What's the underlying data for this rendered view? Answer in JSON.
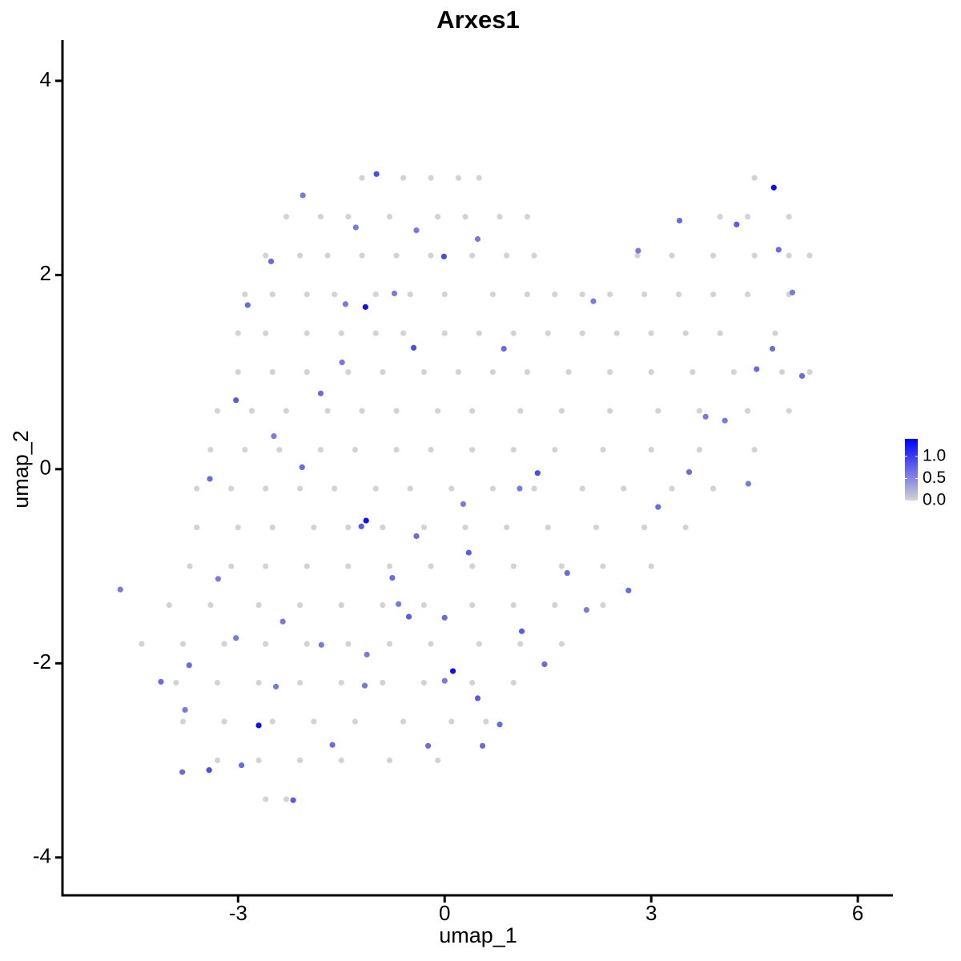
{
  "chart_data": {
    "type": "scatter",
    "title": "Arxes1",
    "xlabel": "umap_1",
    "ylabel": "umap_2",
    "xlim": [
      -5.55,
      6.51
    ],
    "ylim": [
      -4.39,
      4.42
    ],
    "xticks": [
      -3,
      0,
      3,
      6
    ],
    "yticks": [
      -4,
      -2,
      0,
      2,
      4
    ],
    "color_low": "#d3d3d3",
    "color_high": "#0000ff",
    "colorlim": [
      0,
      1.4
    ],
    "colorticks": [
      {
        "value": 0,
        "label": "0.0"
      },
      {
        "value": 0.5,
        "label": "0.5"
      },
      {
        "value": 1,
        "label": "1.0"
      }
    ],
    "x": [
      -1.2,
      -0.6,
      -0.2,
      0.2,
      0.5,
      4.5,
      -2.3,
      -1.8,
      -1.4,
      -0.8,
      -0.1,
      0.3,
      0.8,
      1.2,
      4.0,
      4.4,
      5.0,
      -2.6,
      -2.1,
      -1.7,
      -1.2,
      -0.7,
      -0.2,
      0.4,
      0.9,
      1.3,
      2.8,
      3.3,
      3.9,
      4.5,
      5.0,
      5.3,
      -2.9,
      -2.5,
      -2.0,
      -1.6,
      -1.0,
      -0.5,
      0.0,
      0.7,
      1.2,
      1.6,
      2.0,
      2.4,
      2.9,
      3.4,
      3.9,
      4.4,
      5.0,
      -3.0,
      -2.6,
      -2.0,
      -1.5,
      -1.0,
      -0.6,
      0.0,
      0.5,
      1.0,
      1.5,
      2.0,
      2.5,
      3.0,
      3.5,
      4.0,
      4.8,
      -3.0,
      -2.5,
      -2.0,
      -1.4,
      -0.9,
      -0.3,
      0.2,
      0.7,
      1.2,
      1.8,
      2.4,
      3.0,
      3.6,
      4.2,
      4.9,
      5.3,
      -3.3,
      -2.8,
      -2.3,
      -1.7,
      -1.2,
      -0.7,
      -0.1,
      0.4,
      1.1,
      1.7,
      2.4,
      3.1,
      3.7,
      4.4,
      5.0,
      -3.4,
      -2.9,
      -2.4,
      -1.8,
      -1.3,
      -0.7,
      -0.2,
      0.4,
      1.0,
      1.6,
      2.3,
      3.0,
      3.7,
      4.5,
      -3.6,
      -3.1,
      -2.6,
      -2.1,
      -1.6,
      -1.0,
      -0.5,
      0.1,
      0.7,
      1.3,
      2.0,
      2.6,
      3.3,
      3.9,
      -3.6,
      -3.0,
      -2.5,
      -1.9,
      -1.4,
      -0.9,
      -0.3,
      0.3,
      0.9,
      1.5,
      2.2,
      2.9,
      3.5,
      -3.7,
      -3.1,
      -2.6,
      -2.0,
      -1.4,
      -0.8,
      -0.2,
      0.4,
      1.0,
      1.7,
      2.3,
      3.0,
      -4.0,
      -3.4,
      -2.7,
      -2.1,
      -1.5,
      -0.9,
      -0.3,
      0.4,
      1.0,
      1.6,
      2.3,
      -4.4,
      -3.8,
      -3.2,
      -2.6,
      -2.0,
      -1.4,
      -0.8,
      -0.2,
      0.5,
      1.1,
      1.7,
      -3.9,
      -3.3,
      -2.7,
      -2.1,
      -1.5,
      -0.9,
      -0.3,
      0.4,
      1.0,
      -3.8,
      -3.2,
      -2.5,
      -1.9,
      -1.3,
      -0.6,
      0.1,
      0.6,
      -3.3,
      -2.7,
      -2.1,
      -1.5,
      -0.8,
      -0.1,
      -2.6,
      -2.3,
      4.78,
      -1.15,
      -1.14,
      -2.7,
      0.12,
      -0.99,
      -0.01,
      -0.45,
      -3.03,
      1.35,
      -1.21,
      0.35,
      1.12,
      -3.42,
      -2.2,
      4.24,
      4.85,
      5.19,
      -0.52,
      3.1,
      3.55,
      2.67,
      1.78,
      0.48,
      -2.52,
      -2.86,
      -1.8,
      -2.07,
      -3.41,
      -3.71,
      -4.12,
      -3.81,
      -2.95,
      -1.63,
      -0.24,
      0.55,
      0.8,
      -0.41,
      -0.76,
      0,
      1.45,
      2.06,
      4.53,
      4.76,
      3.41,
      2.81,
      2.16,
      0.86,
      0.48,
      -0.41,
      -1.29,
      -2.06,
      -1.44,
      -0.73,
      -1.49,
      -2.48,
      -3.29,
      -3.03,
      -2.35,
      -2.45,
      -3.77,
      -1.79,
      -1.13,
      -0.67,
      0,
      0.27,
      1.09,
      4.41,
      3.79,
      4.07,
      5.05,
      -4.71,
      -1.16
    ],
    "y": [
      3.0,
      3.0,
      3.0,
      3.0,
      3.0,
      3.0,
      2.6,
      2.6,
      2.6,
      2.6,
      2.6,
      2.6,
      2.6,
      2.6,
      2.6,
      2.6,
      2.6,
      2.2,
      2.2,
      2.2,
      2.2,
      2.2,
      2.2,
      2.2,
      2.2,
      2.2,
      2.2,
      2.2,
      2.2,
      2.2,
      2.2,
      2.2,
      1.8,
      1.8,
      1.8,
      1.8,
      1.8,
      1.8,
      1.8,
      1.8,
      1.8,
      1.8,
      1.8,
      1.8,
      1.8,
      1.8,
      1.8,
      1.8,
      1.8,
      1.4,
      1.4,
      1.4,
      1.4,
      1.4,
      1.4,
      1.4,
      1.4,
      1.4,
      1.4,
      1.4,
      1.4,
      1.4,
      1.4,
      1.4,
      1.4,
      1.0,
      1.0,
      1.0,
      1.0,
      1.0,
      1.0,
      1.0,
      1.0,
      1.0,
      1.0,
      1.0,
      1.0,
      1.0,
      1.0,
      1.0,
      1.0,
      0.6,
      0.6,
      0.6,
      0.6,
      0.6,
      0.6,
      0.6,
      0.6,
      0.6,
      0.6,
      0.6,
      0.6,
      0.6,
      0.6,
      0.6,
      0.2,
      0.2,
      0.2,
      0.2,
      0.2,
      0.2,
      0.2,
      0.2,
      0.2,
      0.2,
      0.2,
      0.2,
      0.2,
      0.2,
      -0.2,
      -0.2,
      -0.2,
      -0.2,
      -0.2,
      -0.2,
      -0.2,
      -0.2,
      -0.2,
      -0.2,
      -0.2,
      -0.2,
      -0.2,
      -0.2,
      -0.6,
      -0.6,
      -0.6,
      -0.6,
      -0.6,
      -0.6,
      -0.6,
      -0.6,
      -0.6,
      -0.6,
      -0.6,
      -0.6,
      -0.6,
      -1.0,
      -1.0,
      -1.0,
      -1.0,
      -1.0,
      -1.0,
      -1.0,
      -1.0,
      -1.0,
      -1.0,
      -1.0,
      -1.0,
      -1.4,
      -1.4,
      -1.4,
      -1.4,
      -1.4,
      -1.4,
      -1.4,
      -1.4,
      -1.4,
      -1.4,
      -1.4,
      -1.8,
      -1.8,
      -1.8,
      -1.8,
      -1.8,
      -1.8,
      -1.8,
      -1.8,
      -1.8,
      -1.8,
      -1.8,
      -2.2,
      -2.2,
      -2.2,
      -2.2,
      -2.2,
      -2.2,
      -2.2,
      -2.2,
      -2.2,
      -2.6,
      -2.6,
      -2.6,
      -2.6,
      -2.6,
      -2.6,
      -2.6,
      -2.6,
      -3.0,
      -3.0,
      -3.0,
      -3.0,
      -3.0,
      -3.0,
      -3.4,
      -3.4,
      2.9,
      1.67,
      -0.53,
      -2.64,
      -2.08,
      3.04,
      2.19,
      1.25,
      0.71,
      -0.04,
      -0.59,
      -0.86,
      -1.67,
      -3.1,
      -3.41,
      2.52,
      2.26,
      0.96,
      -1.52,
      -0.39,
      -0.03,
      -1.25,
      -1.07,
      -2.36,
      2.14,
      1.69,
      0.78,
      0.02,
      -0.1,
      -2.02,
      -2.19,
      -3.12,
      -3.05,
      -2.84,
      -2.85,
      -2.85,
      -2.63,
      -0.69,
      -1.12,
      -1.53,
      -2.01,
      -1.45,
      1.03,
      1.24,
      2.56,
      2.25,
      1.73,
      1.24,
      2.37,
      2.46,
      2.49,
      2.82,
      1.7,
      1.81,
      1.1,
      0.34,
      -1.13,
      -1.74,
      -1.57,
      -2.24,
      -2.48,
      -1.81,
      -1.91,
      -1.39,
      -2.18,
      -0.36,
      -0.2,
      -0.15,
      0.54,
      0.5,
      1.82,
      -1.24,
      -2.23
    ],
    "values": [
      0,
      0,
      0,
      0,
      0,
      0,
      0,
      0,
      0,
      0,
      0,
      0,
      0,
      0,
      0,
      0,
      0,
      0,
      0,
      0,
      0,
      0,
      0,
      0,
      0,
      0,
      0,
      0,
      0,
      0,
      0,
      0,
      0,
      0,
      0,
      0,
      0,
      0,
      0,
      0,
      0,
      0,
      0,
      0,
      0,
      0,
      0,
      0,
      0,
      0,
      0,
      0,
      0,
      0,
      0,
      0,
      0,
      0,
      0,
      0,
      0,
      0,
      0,
      0,
      0,
      0,
      0,
      0,
      0,
      0,
      0,
      0,
      0,
      0,
      0,
      0,
      0,
      0,
      0,
      0,
      0,
      0,
      0,
      0,
      0,
      0,
      0,
      0,
      0,
      0,
      0,
      0,
      0,
      0,
      0,
      0,
      0,
      0,
      0,
      0,
      0,
      0,
      0,
      0,
      0,
      0,
      0,
      0,
      0,
      0,
      0,
      0,
      0,
      0,
      0,
      0,
      0,
      0,
      0,
      0,
      0,
      0,
      0,
      0,
      0,
      0,
      0,
      0,
      0,
      0,
      0,
      0,
      0,
      0,
      0,
      0,
      0,
      0,
      0,
      0,
      0,
      0,
      0,
      0,
      0,
      0,
      0,
      0,
      0,
      0,
      0,
      0,
      0,
      0,
      0,
      0,
      0,
      0,
      0,
      0,
      0,
      0,
      0,
      0,
      0,
      0,
      0,
      0,
      0,
      0,
      0,
      0,
      0,
      0,
      0,
      0,
      0,
      0,
      0,
      0,
      0,
      0,
      0,
      0,
      0,
      0,
      0,
      0,
      0,
      0,
      0,
      0,
      0,
      0,
      0,
      0,
      1.35,
      1.3,
      1.3,
      1.3,
      1.3,
      0.9,
      0.9,
      0.9,
      0.8,
      0.9,
      0.8,
      0.8,
      0.8,
      0.9,
      0.8,
      0.8,
      0.7,
      0.7,
      0.8,
      0.7,
      0.7,
      0.7,
      0.7,
      0.8,
      0.7,
      0.7,
      0.7,
      0.7,
      0.7,
      0.7,
      0.7,
      0.7,
      0.7,
      0.7,
      0.7,
      0.7,
      0.7,
      0.7,
      0.7,
      0.7,
      0.7,
      0.6,
      0.7,
      0.7,
      0.7,
      0.6,
      0.6,
      0.7,
      0.6,
      0.6,
      0.6,
      0.6,
      0.6,
      0.6,
      0.6,
      0.6,
      0.6,
      0.6,
      0.6,
      0.6,
      0.6,
      0.6,
      0.6,
      0.6,
      0.6,
      0.6,
      0.6,
      0.6,
      0.6,
      0.6,
      0.6,
      0.6,
      0.6
    ]
  }
}
